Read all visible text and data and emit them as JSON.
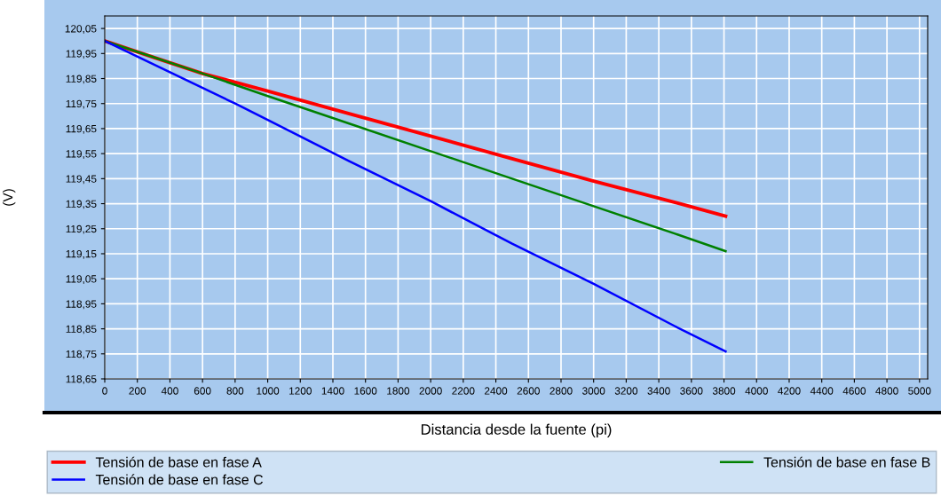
{
  "chart_data": {
    "type": "line",
    "xlabel": "Distancia desde la fuente (pi)",
    "ylabel": "(V)",
    "xlim": [
      0,
      5050
    ],
    "xticks": [
      0,
      200,
      400,
      600,
      800,
      1000,
      1200,
      1400,
      1600,
      1800,
      2000,
      2200,
      2400,
      2600,
      2800,
      3000,
      3200,
      3400,
      3600,
      3800,
      4000,
      4200,
      4400,
      4600,
      4800,
      5000
    ],
    "ylim": [
      118.65,
      120.1
    ],
    "yticks": [
      {
        "value": 118.65,
        "label": "118,65"
      },
      {
        "value": 118.75,
        "label": "118,75"
      },
      {
        "value": 118.85,
        "label": "118,85"
      },
      {
        "value": 118.95,
        "label": "118,95"
      },
      {
        "value": 119.05,
        "label": "119,05"
      },
      {
        "value": 119.15,
        "label": "119,15"
      },
      {
        "value": 119.25,
        "label": "119,25"
      },
      {
        "value": 119.35,
        "label": "119,35"
      },
      {
        "value": 119.45,
        "label": "119,45"
      },
      {
        "value": 119.55,
        "label": "119,55"
      },
      {
        "value": 119.65,
        "label": "119,65"
      },
      {
        "value": 119.75,
        "label": "119,75"
      },
      {
        "value": 119.85,
        "label": "119,85"
      },
      {
        "value": 119.95,
        "label": "119,95"
      },
      {
        "value": 120.05,
        "label": "120,05"
      }
    ],
    "grid": true,
    "legend": "bottom",
    "series": [
      {
        "name": "Tensión de base en fase A",
        "color": "#ff0000",
        "x": [
          0,
          300,
          600,
          1000,
          1500,
          2000,
          2500,
          3000,
          3500,
          3810
        ],
        "values": [
          120.0,
          119.935,
          119.87,
          119.8,
          119.71,
          119.62,
          119.53,
          119.44,
          119.355,
          119.3
        ]
      },
      {
        "name": "Tensión de base en fase B",
        "color": "#008000",
        "x": [
          0,
          300,
          600,
          1000,
          1500,
          2000,
          2500,
          3000,
          3500,
          3810
        ],
        "values": [
          120.0,
          119.935,
          119.87,
          119.78,
          119.67,
          119.56,
          119.45,
          119.34,
          119.23,
          119.16
        ]
      },
      {
        "name": "Tensión de base en fase C",
        "color": "#0000ff",
        "x": [
          0,
          400,
          800,
          1000,
          1500,
          2000,
          2500,
          3000,
          3500,
          3810
        ],
        "values": [
          120.0,
          119.875,
          119.75,
          119.685,
          119.52,
          119.36,
          119.19,
          119.03,
          118.86,
          118.76
        ]
      }
    ]
  }
}
